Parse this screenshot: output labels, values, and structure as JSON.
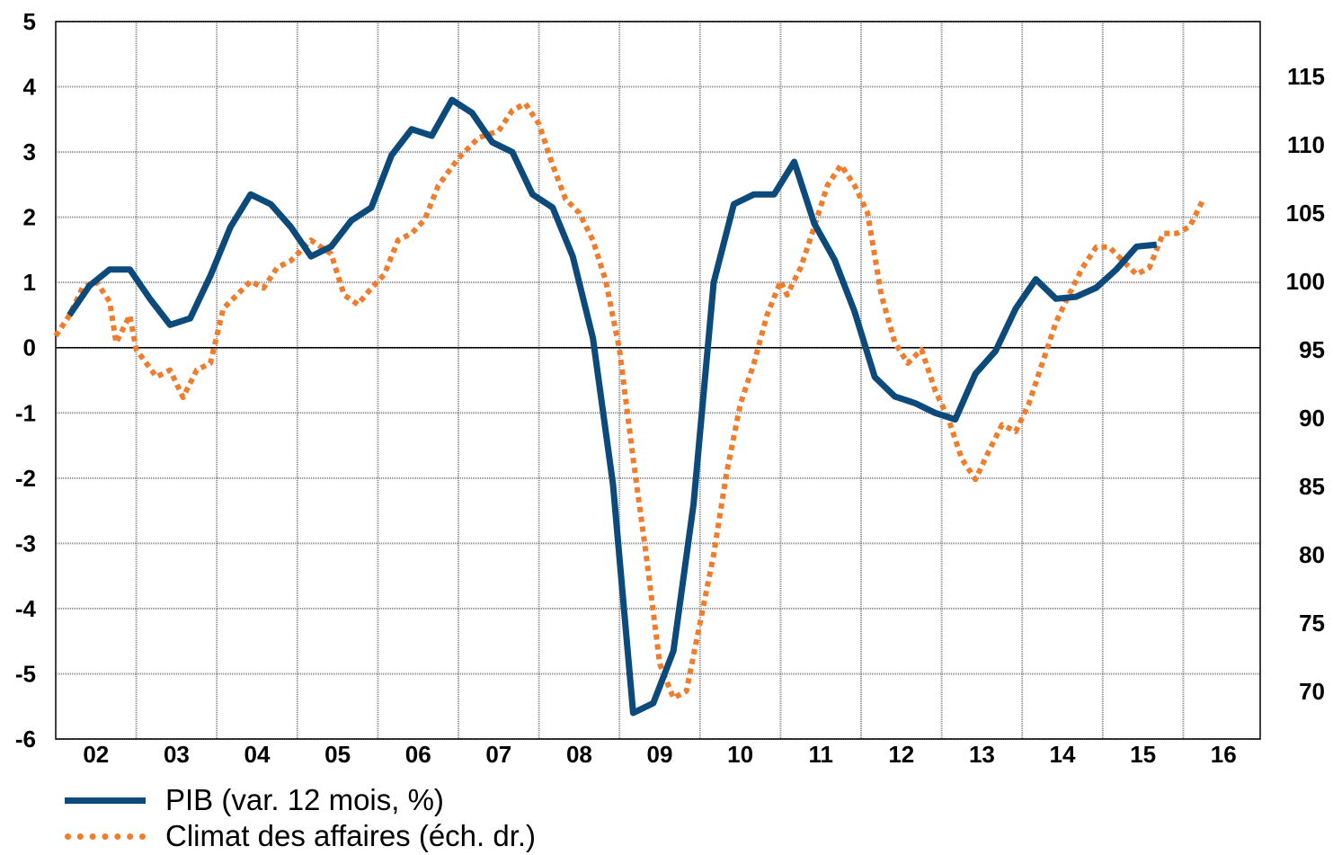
{
  "chart_data": {
    "type": "line",
    "title": "",
    "xlabel": "",
    "ylabel": "",
    "x_tick_labels": [
      "02",
      "03",
      "04",
      "05",
      "06",
      "07",
      "08",
      "09",
      "10",
      "11",
      "12",
      "13",
      "14",
      "15",
      "16"
    ],
    "y_left": {
      "ylim": [
        -6,
        5
      ],
      "ticks": [
        "5",
        "4",
        "3",
        "2",
        "1",
        "0",
        "-1",
        "-2",
        "-3",
        "-4",
        "-5",
        "-6"
      ]
    },
    "y_right": {
      "ylim": [
        66.5,
        119
      ],
      "ticks": [
        "115",
        "110",
        "105",
        "100",
        "95",
        "90",
        "85",
        "80",
        "75",
        "70"
      ]
    },
    "grid": true,
    "legend_position": "bottom-left",
    "series": [
      {
        "name": "PIB (var. 12 mois, %)",
        "axis": "left",
        "color": "#0b4a7a",
        "style": "solid",
        "points": [
          [
            2001.67,
            0.5
          ],
          [
            2001.92,
            0.95
          ],
          [
            2002.17,
            1.2
          ],
          [
            2002.42,
            1.2
          ],
          [
            2002.67,
            0.75
          ],
          [
            2002.92,
            0.35
          ],
          [
            2003.17,
            0.45
          ],
          [
            2003.42,
            1.1
          ],
          [
            2003.67,
            1.85
          ],
          [
            2003.92,
            2.35
          ],
          [
            2004.17,
            2.2
          ],
          [
            2004.42,
            1.85
          ],
          [
            2004.67,
            1.4
          ],
          [
            2004.92,
            1.55
          ],
          [
            2005.17,
            1.95
          ],
          [
            2005.42,
            2.15
          ],
          [
            2005.67,
            2.95
          ],
          [
            2005.92,
            3.35
          ],
          [
            2006.17,
            3.25
          ],
          [
            2006.42,
            3.8
          ],
          [
            2006.67,
            3.6
          ],
          [
            2006.92,
            3.15
          ],
          [
            2007.17,
            3.0
          ],
          [
            2007.42,
            2.35
          ],
          [
            2007.67,
            2.15
          ],
          [
            2007.92,
            1.4
          ],
          [
            2008.17,
            0.15
          ],
          [
            2008.42,
            -2.1
          ],
          [
            2008.67,
            -5.6
          ],
          [
            2008.92,
            -5.45
          ],
          [
            2009.17,
            -4.65
          ],
          [
            2009.42,
            -2.4
          ],
          [
            2009.67,
            1.0
          ],
          [
            2009.92,
            2.2
          ],
          [
            2010.17,
            2.35
          ],
          [
            2010.42,
            2.35
          ],
          [
            2010.67,
            2.85
          ],
          [
            2010.92,
            1.9
          ],
          [
            2011.17,
            1.35
          ],
          [
            2011.42,
            0.55
          ],
          [
            2011.67,
            -0.45
          ],
          [
            2011.92,
            -0.75
          ],
          [
            2012.17,
            -0.85
          ],
          [
            2012.42,
            -1.0
          ],
          [
            2012.67,
            -1.1
          ],
          [
            2012.92,
            -0.4
          ],
          [
            2013.17,
            -0.05
          ],
          [
            2013.42,
            0.6
          ],
          [
            2013.67,
            1.05
          ],
          [
            2013.92,
            0.75
          ],
          [
            2014.17,
            0.78
          ],
          [
            2014.42,
            0.92
          ],
          [
            2014.67,
            1.2
          ],
          [
            2014.92,
            1.55
          ],
          [
            2015.17,
            1.58
          ]
        ]
      },
      {
        "name": "Climat des affaires (éch. dr.)",
        "axis": "right",
        "color": "#f07d2c",
        "style": "dotted",
        "points": [
          [
            2001.5,
            96
          ],
          [
            2001.67,
            97.5
          ],
          [
            2001.83,
            99.5
          ],
          [
            2002.0,
            100
          ],
          [
            2002.17,
            98.5
          ],
          [
            2002.25,
            95.5
          ],
          [
            2002.42,
            97.5
          ],
          [
            2002.5,
            95
          ],
          [
            2002.75,
            93
          ],
          [
            2002.92,
            93.5
          ],
          [
            2003.08,
            91.5
          ],
          [
            2003.25,
            93.5
          ],
          [
            2003.42,
            94
          ],
          [
            2003.58,
            98
          ],
          [
            2003.75,
            99
          ],
          [
            2003.92,
            100
          ],
          [
            2004.08,
            99.5
          ],
          [
            2004.25,
            101
          ],
          [
            2004.42,
            101.5
          ],
          [
            2004.67,
            103
          ],
          [
            2004.92,
            102
          ],
          [
            2005.08,
            99
          ],
          [
            2005.25,
            98.3
          ],
          [
            2005.42,
            99.5
          ],
          [
            2005.58,
            100.5
          ],
          [
            2005.75,
            103
          ],
          [
            2005.92,
            103.5
          ],
          [
            2006.08,
            104.5
          ],
          [
            2006.25,
            107
          ],
          [
            2006.5,
            109
          ],
          [
            2006.75,
            110.5
          ],
          [
            2007.0,
            111
          ],
          [
            2007.17,
            112.5
          ],
          [
            2007.33,
            113
          ],
          [
            2007.5,
            111.5
          ],
          [
            2007.67,
            108.5
          ],
          [
            2007.83,
            106
          ],
          [
            2008.0,
            105
          ],
          [
            2008.17,
            103
          ],
          [
            2008.33,
            100
          ],
          [
            2008.5,
            95
          ],
          [
            2008.67,
            87
          ],
          [
            2008.83,
            80
          ],
          [
            2009.0,
            72
          ],
          [
            2009.17,
            69.5
          ],
          [
            2009.33,
            70
          ],
          [
            2009.5,
            75
          ],
          [
            2009.67,
            80
          ],
          [
            2009.83,
            86
          ],
          [
            2010.0,
            91
          ],
          [
            2010.17,
            94
          ],
          [
            2010.33,
            97.5
          ],
          [
            2010.5,
            100
          ],
          [
            2010.58,
            99
          ],
          [
            2010.75,
            101
          ],
          [
            2010.92,
            104
          ],
          [
            2011.08,
            107
          ],
          [
            2011.25,
            108.5
          ],
          [
            2011.42,
            107
          ],
          [
            2011.58,
            105
          ],
          [
            2011.75,
            99
          ],
          [
            2011.92,
            95.5
          ],
          [
            2012.08,
            94
          ],
          [
            2012.25,
            95
          ],
          [
            2012.42,
            92
          ],
          [
            2012.58,
            90
          ],
          [
            2012.75,
            87
          ],
          [
            2012.92,
            85.5
          ],
          [
            2013.08,
            87.5
          ],
          [
            2013.25,
            89.5
          ],
          [
            2013.42,
            89
          ],
          [
            2013.58,
            91
          ],
          [
            2013.75,
            94
          ],
          [
            2013.92,
            97
          ],
          [
            2014.08,
            99
          ],
          [
            2014.25,
            101
          ],
          [
            2014.42,
            102.5
          ],
          [
            2014.58,
            102.5
          ],
          [
            2014.75,
            101.5
          ],
          [
            2014.92,
            100.5
          ],
          [
            2015.08,
            101
          ],
          [
            2015.25,
            103.5
          ],
          [
            2015.42,
            103.5
          ],
          [
            2015.58,
            104
          ],
          [
            2015.75,
            106
          ]
        ]
      }
    ]
  },
  "legend": {
    "items": [
      {
        "label": "PIB (var. 12 mois, %)"
      },
      {
        "label": "Climat des affaires (éch. dr.)"
      }
    ]
  }
}
